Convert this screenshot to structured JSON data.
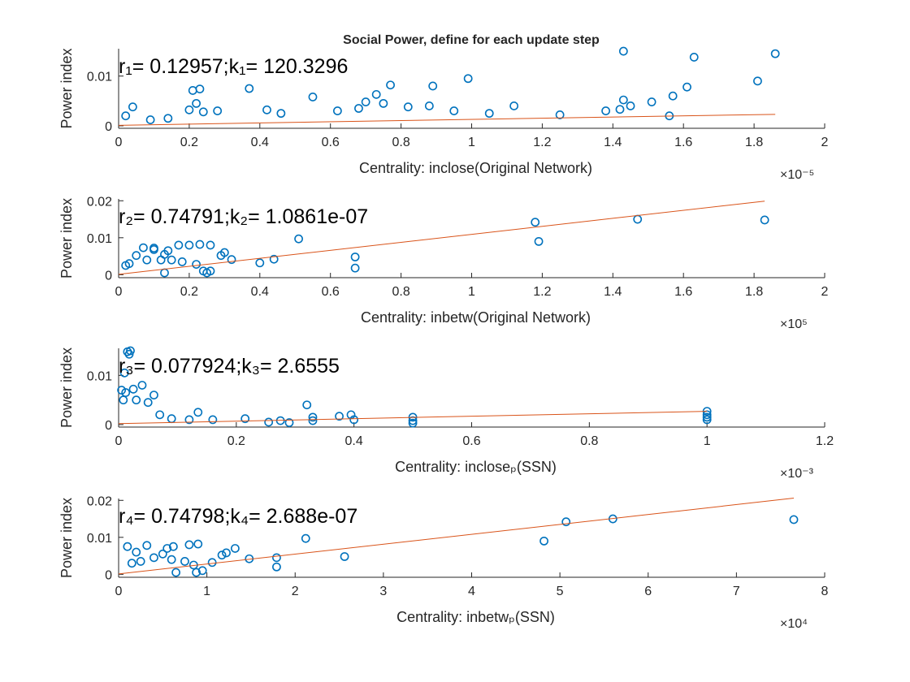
{
  "figure": {
    "title": "Social Power, define for each update step"
  },
  "chart_data": [
    {
      "type": "scatter",
      "title": "Social Power, define for each update step",
      "xlabel": "Centrality: inclose(Original Network)",
      "ylabel": "Power index",
      "xlim": [
        0,
        2
      ],
      "ylim": [
        -0.0005,
        0.0155
      ],
      "x_ticks": [
        "0",
        "0.2",
        "0.4",
        "0.6",
        "0.8",
        "1",
        "1.2",
        "1.4",
        "1.6",
        "1.8",
        "2"
      ],
      "y_ticks": [
        {
          "v": 0,
          "label": "0"
        },
        {
          "v": 0.01,
          "label": "0.01"
        }
      ],
      "x_exponent": "×10⁻⁵",
      "annotation": "r₁= 0.12957;k₁= 120.3296",
      "fit_line": {
        "x": [
          0,
          1.86
        ],
        "y": [
          0.0001,
          0.0023
        ]
      },
      "points": [
        [
          1.43,
          0.015
        ],
        [
          1.86,
          0.0145
        ],
        [
          1.63,
          0.0138
        ],
        [
          1.81,
          0.009
        ],
        [
          1.61,
          0.0078
        ],
        [
          1.57,
          0.006
        ],
        [
          1.51,
          0.0048
        ],
        [
          1.43,
          0.0052
        ],
        [
          1.42,
          0.0033
        ],
        [
          1.45,
          0.004
        ],
        [
          1.38,
          0.003
        ],
        [
          1.56,
          0.002
        ],
        [
          0.99,
          0.0095
        ],
        [
          0.77,
          0.0082
        ],
        [
          0.89,
          0.008
        ],
        [
          0.37,
          0.0075
        ],
        [
          0.21,
          0.0071
        ],
        [
          0.23,
          0.0074
        ],
        [
          0.73,
          0.0063
        ],
        [
          0.55,
          0.0058
        ],
        [
          0.7,
          0.0048
        ],
        [
          0.75,
          0.0045
        ],
        [
          0.04,
          0.0038
        ],
        [
          0.22,
          0.0045
        ],
        [
          0.2,
          0.0032
        ],
        [
          0.24,
          0.0028
        ],
        [
          0.28,
          0.003
        ],
        [
          0.42,
          0.0032
        ],
        [
          0.46,
          0.0025
        ],
        [
          0.82,
          0.0038
        ],
        [
          0.88,
          0.004
        ],
        [
          0.95,
          0.003
        ],
        [
          1.12,
          0.004
        ],
        [
          1.25,
          0.0022
        ],
        [
          1.05,
          0.0025
        ],
        [
          0.62,
          0.003
        ],
        [
          0.68,
          0.0035
        ],
        [
          0.02,
          0.002
        ],
        [
          0.09,
          0.0012
        ],
        [
          0.14,
          0.0015
        ]
      ]
    },
    {
      "type": "scatter",
      "xlabel": "Centrality: inbetw(Original Network)",
      "ylabel": "Power index",
      "xlim": [
        0,
        2
      ],
      "ylim": [
        -0.0008,
        0.0205
      ],
      "x_ticks": [
        "0",
        "0.2",
        "0.4",
        "0.6",
        "0.8",
        "1",
        "1.2",
        "1.4",
        "1.6",
        "1.8",
        "2"
      ],
      "y_ticks": [
        {
          "v": 0,
          "label": "0"
        },
        {
          "v": 0.01,
          "label": "0.01"
        },
        {
          "v": 0.02,
          "label": "0.02"
        }
      ],
      "x_exponent": "×10⁵",
      "annotation": "r₂= 0.74791;k₂= 1.0861e-07",
      "fit_line": {
        "x": [
          0,
          1.83
        ],
        "y": [
          0.0001,
          0.0199
        ]
      },
      "points": [
        [
          1.47,
          0.015
        ],
        [
          1.83,
          0.0148
        ],
        [
          1.18,
          0.0142
        ],
        [
          1.19,
          0.009
        ],
        [
          0.51,
          0.0097
        ],
        [
          0.67,
          0.0048
        ],
        [
          0.67,
          0.0018
        ],
        [
          0.44,
          0.0042
        ],
        [
          0.4,
          0.0032
        ],
        [
          0.32,
          0.0041
        ],
        [
          0.29,
          0.0052
        ],
        [
          0.3,
          0.006
        ],
        [
          0.26,
          0.008
        ],
        [
          0.23,
          0.0082
        ],
        [
          0.2,
          0.008
        ],
        [
          0.17,
          0.008
        ],
        [
          0.14,
          0.0065
        ],
        [
          0.13,
          0.0055
        ],
        [
          0.1,
          0.0068
        ],
        [
          0.1,
          0.0072
        ],
        [
          0.07,
          0.0073
        ],
        [
          0.05,
          0.0052
        ],
        [
          0.08,
          0.004
        ],
        [
          0.12,
          0.004
        ],
        [
          0.15,
          0.004
        ],
        [
          0.18,
          0.0035
        ],
        [
          0.22,
          0.0028
        ],
        [
          0.24,
          0.001
        ],
        [
          0.25,
          0.0005
        ],
        [
          0.26,
          0.001
        ],
        [
          0.13,
          0.0005
        ],
        [
          0.03,
          0.003
        ],
        [
          0.02,
          0.0025
        ]
      ]
    },
    {
      "type": "scatter",
      "xlabel": "Centrality: incloseₚ(SSN)",
      "ylabel": "Power index",
      "xlim": [
        0,
        1.2
      ],
      "ylim": [
        -0.0005,
        0.0155
      ],
      "x_ticks": [
        "0",
        "0.2",
        "0.4",
        "0.6",
        "0.8",
        "1",
        "1.2"
      ],
      "y_ticks": [
        {
          "v": 0,
          "label": "0"
        },
        {
          "v": 0.01,
          "label": "0.01"
        }
      ],
      "x_exponent": "×10⁻³",
      "annotation": "r₃= 0.077924;k₃= 2.6555",
      "fit_line": {
        "x": [
          0,
          1.0
        ],
        "y": [
          0.0002,
          0.0027
        ]
      },
      "points": [
        [
          0.015,
          0.0148
        ],
        [
          0.018,
          0.0143
        ],
        [
          0.02,
          0.015
        ],
        [
          0.01,
          0.0105
        ],
        [
          0.04,
          0.008
        ],
        [
          0.06,
          0.006
        ],
        [
          0.005,
          0.007
        ],
        [
          0.03,
          0.005
        ],
        [
          0.025,
          0.0072
        ],
        [
          0.012,
          0.0065
        ],
        [
          0.008,
          0.005
        ],
        [
          0.05,
          0.0045
        ],
        [
          0.07,
          0.002
        ],
        [
          0.09,
          0.0012
        ],
        [
          0.12,
          0.001
        ],
        [
          0.135,
          0.0025
        ],
        [
          0.16,
          0.001
        ],
        [
          0.215,
          0.0012
        ],
        [
          0.255,
          0.0005
        ],
        [
          0.275,
          0.0008
        ],
        [
          0.29,
          0.0004
        ],
        [
          0.32,
          0.004
        ],
        [
          0.33,
          0.0015
        ],
        [
          0.33,
          0.0008
        ],
        [
          0.375,
          0.0017
        ],
        [
          0.395,
          0.002
        ],
        [
          0.4,
          0.001
        ],
        [
          0.5,
          0.0015
        ],
        [
          0.5,
          0.0008
        ],
        [
          0.5,
          0.0003
        ],
        [
          1.0,
          0.0027
        ],
        [
          1.0,
          0.002
        ],
        [
          1.0,
          0.0015
        ],
        [
          1.0,
          0.001
        ]
      ]
    },
    {
      "type": "scatter",
      "xlabel": "Centrality: inbetwₚ(SSN)",
      "ylabel": "Power index",
      "xlim": [
        0,
        8
      ],
      "ylim": [
        -0.0008,
        0.0205
      ],
      "x_ticks": [
        "0",
        "1",
        "2",
        "3",
        "4",
        "5",
        "6",
        "7",
        "8"
      ],
      "y_ticks": [
        {
          "v": 0,
          "label": "0"
        },
        {
          "v": 0.01,
          "label": "0.01"
        },
        {
          "v": 0.02,
          "label": "0.02"
        }
      ],
      "x_exponent": "×10⁴",
      "annotation": "r₄= 0.74798;k₄= 2.688e-07",
      "fit_line": {
        "x": [
          0,
          7.65
        ],
        "y": [
          0.0001,
          0.0206
        ]
      },
      "points": [
        [
          7.65,
          0.0148
        ],
        [
          5.6,
          0.015
        ],
        [
          5.07,
          0.0142
        ],
        [
          4.82,
          0.009
        ],
        [
          2.12,
          0.0097
        ],
        [
          2.56,
          0.0048
        ],
        [
          1.79,
          0.0045
        ],
        [
          1.79,
          0.002
        ],
        [
          1.48,
          0.0042
        ],
        [
          1.32,
          0.007
        ],
        [
          1.17,
          0.0052
        ],
        [
          1.22,
          0.0058
        ],
        [
          1.06,
          0.0032
        ],
        [
          0.9,
          0.0082
        ],
        [
          0.8,
          0.008
        ],
        [
          0.62,
          0.0075
        ],
        [
          0.55,
          0.007
        ],
        [
          0.5,
          0.0055
        ],
        [
          0.32,
          0.0078
        ],
        [
          0.4,
          0.0045
        ],
        [
          0.6,
          0.004
        ],
        [
          0.75,
          0.0035
        ],
        [
          0.85,
          0.0025
        ],
        [
          0.95,
          0.001
        ],
        [
          0.88,
          0.0005
        ],
        [
          0.65,
          0.0005
        ],
        [
          0.2,
          0.006
        ],
        [
          0.1,
          0.0075
        ],
        [
          0.25,
          0.0035
        ],
        [
          0.15,
          0.003
        ]
      ]
    }
  ]
}
